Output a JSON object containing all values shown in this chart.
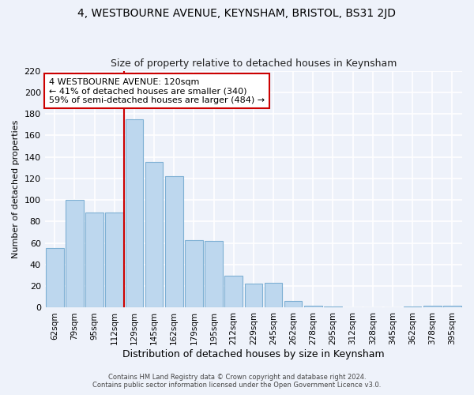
{
  "title1": "4, WESTBOURNE AVENUE, KEYNSHAM, BRISTOL, BS31 2JD",
  "title2": "Size of property relative to detached houses in Keynsham",
  "xlabel": "Distribution of detached houses by size in Keynsham",
  "ylabel": "Number of detached properties",
  "bar_labels": [
    "62sqm",
    "79sqm",
    "95sqm",
    "112sqm",
    "129sqm",
    "145sqm",
    "162sqm",
    "179sqm",
    "195sqm",
    "212sqm",
    "229sqm",
    "245sqm",
    "262sqm",
    "278sqm",
    "295sqm",
    "312sqm",
    "328sqm",
    "345sqm",
    "362sqm",
    "378sqm",
    "395sqm"
  ],
  "bar_values": [
    55,
    100,
    88,
    88,
    175,
    135,
    122,
    63,
    62,
    30,
    22,
    23,
    6,
    2,
    1,
    0,
    0,
    0,
    1,
    2,
    2
  ],
  "bar_color": "#bdd7ee",
  "bar_edge_color": "#7eb0d4",
  "ylim": [
    0,
    220
  ],
  "yticks": [
    0,
    20,
    40,
    60,
    80,
    100,
    120,
    140,
    160,
    180,
    200,
    220
  ],
  "vline_x_index": 3,
  "vline_color": "#cc0000",
  "annotation_text": "4 WESTBOURNE AVENUE: 120sqm\n← 41% of detached houses are smaller (340)\n59% of semi-detached houses are larger (484) →",
  "annotation_box_color": "#ffffff",
  "annotation_box_edge": "#cc0000",
  "footer1": "Contains HM Land Registry data © Crown copyright and database right 2024.",
  "footer2": "Contains public sector information licensed under the Open Government Licence v3.0.",
  "bg_color": "#eef2fa",
  "grid_color": "#ffffff",
  "title1_fontsize": 10,
  "title2_fontsize": 9
}
